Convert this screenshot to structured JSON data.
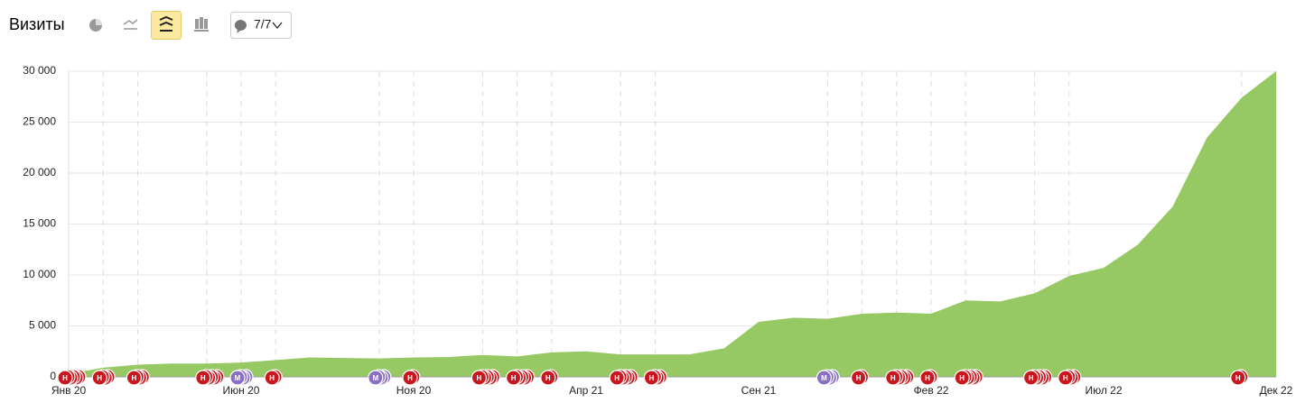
{
  "header": {
    "title": "Визиты",
    "comments": "7/7"
  },
  "chart_data": {
    "type": "area",
    "categories": [
      "Янв 20",
      null,
      null,
      null,
      null,
      "Июн 20",
      null,
      null,
      null,
      null,
      "Ноя 20",
      null,
      null,
      null,
      null,
      "Апр 21",
      null,
      null,
      null,
      null,
      "Сен 21",
      null,
      null,
      null,
      null,
      "Фев 22",
      null,
      null,
      null,
      null,
      "Июл 22",
      null,
      null,
      null,
      null,
      "Дек 22"
    ],
    "values": [
      300,
      900,
      1200,
      1300,
      1300,
      1400,
      1650,
      1900,
      1850,
      1800,
      1900,
      1950,
      2150,
      2000,
      2400,
      2500,
      2200,
      2200,
      2200,
      2800,
      5400,
      5800,
      5700,
      6200,
      6300,
      6200,
      7500,
      7400,
      8200,
      9900,
      10700,
      13000,
      16700,
      23500,
      27400,
      30000
    ],
    "color": "#96c963",
    "ylim": [
      0,
      30000
    ],
    "yticks": [
      0,
      {
        "value": 5000,
        "label": "5 000"
      },
      {
        "value": 10000,
        "label": "10 000"
      },
      {
        "value": 15000,
        "label": "15 000"
      },
      {
        "value": 20000,
        "label": "20 000"
      },
      {
        "value": 25000,
        "label": "25 000"
      },
      {
        "value": 30000,
        "label": "30 000"
      }
    ],
    "grid": true,
    "annotations": [
      {
        "index": 0,
        "label": "Н",
        "count": 3,
        "color": "#c8171e"
      },
      {
        "index": 1,
        "label": "Н",
        "count": 2,
        "color": "#c8171e"
      },
      {
        "index": 2,
        "label": "Н",
        "count": 2,
        "color": "#c8171e"
      },
      {
        "index": 4,
        "label": "Н",
        "count": 3,
        "color": "#c8171e"
      },
      {
        "index": 5,
        "label": "М",
        "count": 2,
        "color": "#8a6fc4"
      },
      {
        "index": 6,
        "label": "Н",
        "count": 1,
        "color": "#c8171e"
      },
      {
        "index": 9,
        "label": "М",
        "count": 2,
        "color": "#8a6fc4"
      },
      {
        "index": 10,
        "label": "Н",
        "count": 1,
        "color": "#c8171e"
      },
      {
        "index": 12,
        "label": "Н",
        "count": 3,
        "color": "#c8171e"
      },
      {
        "index": 13,
        "label": "Н",
        "count": 3,
        "color": "#c8171e"
      },
      {
        "index": 14,
        "label": "Н",
        "count": 1,
        "color": "#c8171e"
      },
      {
        "index": 16,
        "label": "Н",
        "count": 3,
        "color": "#c8171e"
      },
      {
        "index": 17,
        "label": "Н",
        "count": 2,
        "color": "#c8171e"
      },
      {
        "index": 22,
        "label": "М",
        "count": 2,
        "color": "#8a6fc4"
      },
      {
        "index": 23,
        "label": "Н",
        "count": 1,
        "color": "#c8171e"
      },
      {
        "index": 24,
        "label": "Н",
        "count": 3,
        "color": "#c8171e"
      },
      {
        "index": 25,
        "label": "Н",
        "count": 1,
        "color": "#c8171e"
      },
      {
        "index": 26,
        "label": "Н",
        "count": 3,
        "color": "#c8171e"
      },
      {
        "index": 28,
        "label": "Н",
        "count": 3,
        "color": "#c8171e"
      },
      {
        "index": 29,
        "label": "Н",
        "count": 2,
        "color": "#c8171e"
      },
      {
        "index": 34,
        "label": "Н",
        "count": 1,
        "color": "#c8171e"
      }
    ]
  }
}
